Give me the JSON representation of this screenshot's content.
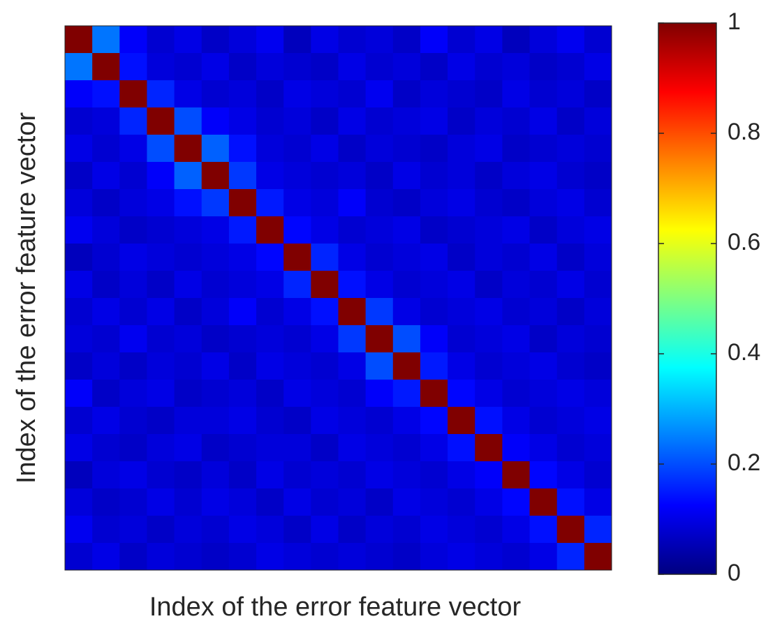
{
  "chart_data": {
    "type": "heatmap",
    "xlabel": "Index of the error feature vector",
    "ylabel": "Index of the error feature vector",
    "colormap": "jet",
    "clim": [
      0,
      1
    ],
    "cticks": [
      0,
      0.2,
      0.4,
      0.6,
      0.8,
      1
    ],
    "values": [
      [
        1,
        0.24,
        0.12,
        0.08,
        0.1,
        0.07,
        0.09,
        0.11,
        0.06,
        0.1,
        0.08,
        0.09,
        0.07,
        0.12,
        0.08,
        0.1,
        0.06,
        0.09,
        0.11,
        0.08
      ],
      [
        0.24,
        1,
        0.14,
        0.09,
        0.08,
        0.1,
        0.07,
        0.09,
        0.08,
        0.07,
        0.1,
        0.08,
        0.09,
        0.07,
        0.1,
        0.08,
        0.09,
        0.07,
        0.08,
        0.1
      ],
      [
        0.12,
        0.14,
        1,
        0.16,
        0.1,
        0.08,
        0.09,
        0.07,
        0.1,
        0.09,
        0.08,
        0.11,
        0.07,
        0.09,
        0.08,
        0.07,
        0.1,
        0.08,
        0.09,
        0.07
      ],
      [
        0.08,
        0.09,
        0.16,
        1,
        0.2,
        0.12,
        0.1,
        0.08,
        0.09,
        0.07,
        0.1,
        0.08,
        0.09,
        0.1,
        0.07,
        0.09,
        0.08,
        0.1,
        0.07,
        0.09
      ],
      [
        0.1,
        0.08,
        0.1,
        0.2,
        1,
        0.22,
        0.14,
        0.09,
        0.08,
        0.1,
        0.07,
        0.09,
        0.08,
        0.07,
        0.09,
        0.1,
        0.07,
        0.08,
        0.09,
        0.08
      ],
      [
        0.07,
        0.1,
        0.08,
        0.12,
        0.22,
        1,
        0.18,
        0.1,
        0.09,
        0.08,
        0.09,
        0.07,
        0.1,
        0.08,
        0.09,
        0.07,
        0.09,
        0.1,
        0.08,
        0.07
      ],
      [
        0.09,
        0.07,
        0.09,
        0.1,
        0.14,
        0.18,
        1,
        0.15,
        0.1,
        0.09,
        0.12,
        0.08,
        0.07,
        0.09,
        0.1,
        0.08,
        0.07,
        0.09,
        0.1,
        0.08
      ],
      [
        0.11,
        0.09,
        0.07,
        0.08,
        0.09,
        0.1,
        0.15,
        1,
        0.13,
        0.1,
        0.08,
        0.09,
        0.1,
        0.07,
        0.08,
        0.09,
        0.1,
        0.07,
        0.09,
        0.1
      ],
      [
        0.06,
        0.08,
        0.1,
        0.09,
        0.08,
        0.09,
        0.1,
        0.13,
        1,
        0.16,
        0.1,
        0.08,
        0.09,
        0.1,
        0.07,
        0.09,
        0.08,
        0.1,
        0.07,
        0.09
      ],
      [
        0.1,
        0.07,
        0.09,
        0.07,
        0.1,
        0.08,
        0.09,
        0.1,
        0.16,
        1,
        0.14,
        0.1,
        0.08,
        0.09,
        0.1,
        0.07,
        0.09,
        0.08,
        0.1,
        0.08
      ],
      [
        0.08,
        0.1,
        0.08,
        0.1,
        0.07,
        0.09,
        0.12,
        0.08,
        0.1,
        0.14,
        1,
        0.18,
        0.1,
        0.08,
        0.09,
        0.1,
        0.08,
        0.09,
        0.07,
        0.09
      ],
      [
        0.09,
        0.08,
        0.11,
        0.08,
        0.09,
        0.07,
        0.08,
        0.09,
        0.08,
        0.1,
        0.18,
        1,
        0.2,
        0.12,
        0.08,
        0.09,
        0.1,
        0.07,
        0.09,
        0.08
      ],
      [
        0.07,
        0.09,
        0.07,
        0.09,
        0.08,
        0.1,
        0.07,
        0.1,
        0.09,
        0.08,
        0.1,
        0.2,
        1,
        0.15,
        0.1,
        0.08,
        0.09,
        0.1,
        0.08,
        0.07
      ],
      [
        0.12,
        0.07,
        0.09,
        0.1,
        0.07,
        0.08,
        0.09,
        0.07,
        0.1,
        0.09,
        0.08,
        0.12,
        0.15,
        1,
        0.13,
        0.1,
        0.08,
        0.09,
        0.1,
        0.09
      ],
      [
        0.08,
        0.1,
        0.08,
        0.07,
        0.09,
        0.09,
        0.1,
        0.08,
        0.07,
        0.1,
        0.09,
        0.08,
        0.1,
        0.13,
        1,
        0.14,
        0.1,
        0.08,
        0.09,
        0.1
      ],
      [
        0.1,
        0.08,
        0.07,
        0.09,
        0.1,
        0.07,
        0.08,
        0.09,
        0.09,
        0.07,
        0.1,
        0.09,
        0.08,
        0.1,
        0.14,
        1,
        0.12,
        0.1,
        0.08,
        0.09
      ],
      [
        0.06,
        0.09,
        0.1,
        0.08,
        0.07,
        0.09,
        0.07,
        0.1,
        0.08,
        0.09,
        0.08,
        0.1,
        0.09,
        0.08,
        0.1,
        0.12,
        1,
        0.13,
        0.1,
        0.08
      ],
      [
        0.09,
        0.07,
        0.08,
        0.1,
        0.08,
        0.1,
        0.09,
        0.07,
        0.1,
        0.08,
        0.09,
        0.07,
        0.1,
        0.09,
        0.08,
        0.1,
        0.13,
        1,
        0.14,
        0.1
      ],
      [
        0.11,
        0.08,
        0.09,
        0.07,
        0.09,
        0.08,
        0.1,
        0.09,
        0.07,
        0.1,
        0.07,
        0.09,
        0.08,
        0.1,
        0.09,
        0.08,
        0.1,
        0.14,
        1,
        0.16
      ],
      [
        0.08,
        0.1,
        0.07,
        0.09,
        0.08,
        0.07,
        0.08,
        0.1,
        0.09,
        0.08,
        0.09,
        0.08,
        0.07,
        0.09,
        0.1,
        0.09,
        0.08,
        0.1,
        0.16,
        1
      ]
    ]
  }
}
